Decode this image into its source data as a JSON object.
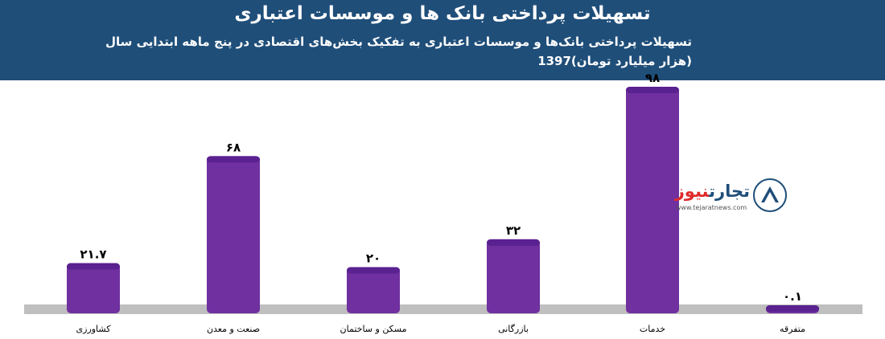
{
  "header": {
    "title": "تسهیلات پرداختی بانک ها و موسسات اعتباری",
    "subtitle_line1": "تسهیلات پرداختی بانک‌ها و موسسات اعتباری به تفکیک بخش‌های اقتصادی در پنج ماهه ابتدایی سال",
    "subtitle_line2": "1397(هزار میلیارد تومان)"
  },
  "logo": {
    "name_part1": "تجارت",
    "name_part2": "نیوز",
    "url": "www.tejaratnews.com"
  },
  "colors": {
    "header_bg": "#1f4e79",
    "bar_fill": "#7030a0",
    "bar_top": "#5a2190",
    "baseline": "#bfbfbf"
  },
  "chart_data": {
    "type": "bar",
    "categories": [
      "کشاورزی",
      "صنعت و معدن",
      "مسکن و ساختمان",
      "بازرگانی",
      "خدمات",
      "متفرقه"
    ],
    "values": [
      21.7,
      68,
      20,
      32,
      98,
      0.1
    ],
    "value_labels": [
      "۲۱.۷",
      "۶۸",
      "۲۰",
      "۳۲",
      "۹۸",
      "۰.۱"
    ],
    "title": "تسهیلات پرداختی بانک ها و موسسات اعتباری",
    "ylim": [
      0,
      98
    ],
    "grid": false,
    "legend": "none"
  }
}
